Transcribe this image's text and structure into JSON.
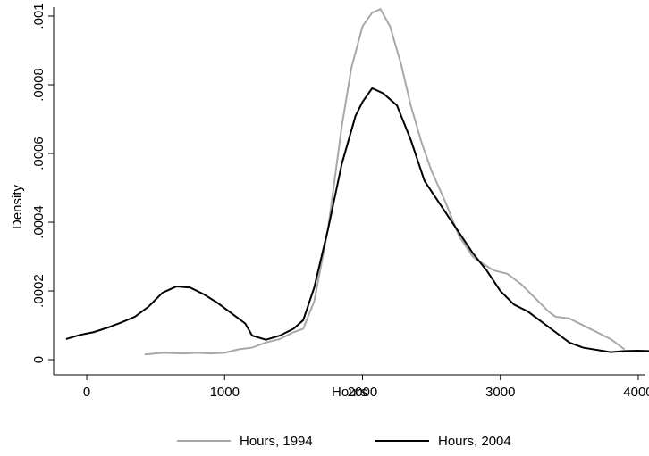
{
  "chart_data": {
    "type": "line",
    "x_label": "Hours",
    "y_label": "Density",
    "xlim": [
      -240,
      4052
    ],
    "xticks": [
      0,
      1000,
      2000,
      3000,
      4000
    ],
    "ylim": [
      -4.4e-05,
      0.001026
    ],
    "yticks": [
      0,
      {
        "value": 0.0002,
        "label": ".0002"
      },
      {
        "value": 0.0004,
        "label": ".0004"
      },
      {
        "value": 0.0006,
        "label": ".0006"
      },
      {
        "value": 0.0008,
        "label": ".0008"
      },
      {
        "value": 0.001,
        "label": ".001"
      }
    ],
    "series": [
      {
        "name": "Hours, 1994",
        "color": "#a8a8a8",
        "x": [
          420,
          550,
          700,
          800,
          900,
          1000,
          1100,
          1200,
          1300,
          1400,
          1500,
          1570,
          1650,
          1750,
          1850,
          1920,
          2000,
          2070,
          2130,
          2200,
          2280,
          2350,
          2430,
          2500,
          2600,
          2700,
          2800,
          2870,
          2950,
          3050,
          3150,
          3250,
          3350,
          3400,
          3500,
          3600,
          3700,
          3800,
          3900
        ],
        "values": [
          1.5e-05,
          2e-05,
          1.8e-05,
          2e-05,
          1.8e-05,
          2e-05,
          3e-05,
          3.5e-05,
          5e-05,
          6e-05,
          8e-05,
          9e-05,
          0.00017,
          0.00038,
          0.00068,
          0.00085,
          0.00097,
          0.00101,
          0.00102,
          0.00097,
          0.00086,
          0.00074,
          0.00063,
          0.00055,
          0.00046,
          0.00036,
          0.0003,
          0.00028,
          0.00026,
          0.00025,
          0.00022,
          0.00018,
          0.00014,
          0.000125,
          0.00012,
          0.0001,
          8e-05,
          6e-05,
          3e-05
        ]
      },
      {
        "name": "Hours, 2004",
        "color": "#000000",
        "x": [
          -150,
          -50,
          50,
          150,
          250,
          350,
          450,
          550,
          650,
          750,
          850,
          950,
          1050,
          1150,
          1200,
          1300,
          1400,
          1500,
          1570,
          1650,
          1750,
          1850,
          1950,
          2000,
          2070,
          2150,
          2250,
          2350,
          2450,
          2550,
          2700,
          2800,
          2900,
          3000,
          3100,
          3200,
          3300,
          3400,
          3500,
          3600,
          3800,
          3900,
          4000,
          4100,
          4200
        ],
        "values": [
          6e-05,
          7.2e-05,
          8e-05,
          9.3e-05,
          0.000108,
          0.000125,
          0.000155,
          0.000195,
          0.000213,
          0.00021,
          0.00019,
          0.000165,
          0.000135,
          0.000105,
          7e-05,
          5.8e-05,
          7e-05,
          9e-05,
          0.000115,
          0.00021,
          0.00038,
          0.00057,
          0.00071,
          0.00075,
          0.00079,
          0.000775,
          0.00074,
          0.00064,
          0.00052,
          0.00046,
          0.00037,
          0.00031,
          0.00026,
          0.0002,
          0.00016,
          0.00014,
          0.00011,
          8e-05,
          5e-05,
          3.5e-05,
          2.2e-05,
          2.5e-05,
          2.6e-05,
          2.5e-05,
          2.2e-05
        ]
      }
    ]
  }
}
